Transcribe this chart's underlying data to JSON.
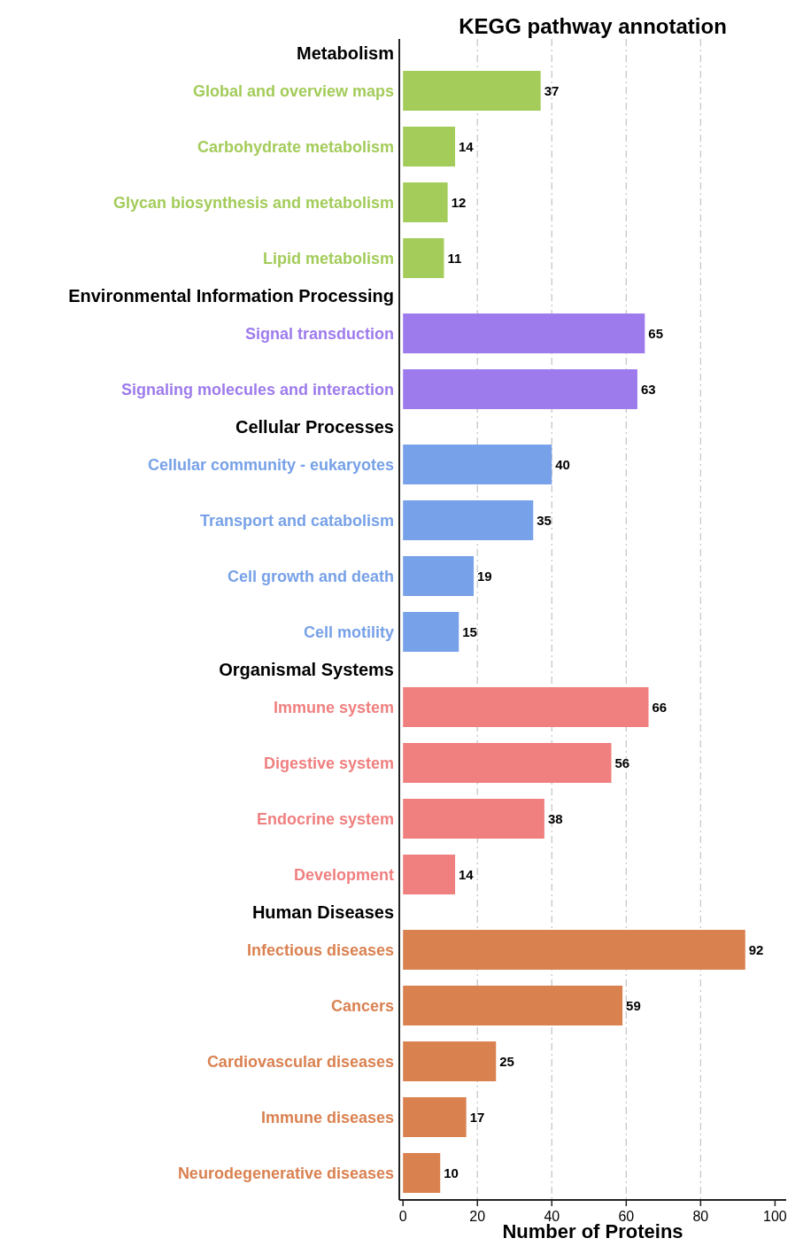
{
  "chart_data": {
    "type": "bar",
    "orientation": "horizontal",
    "title": "KEGG pathway annotation",
    "xlabel": "Number of Proteins",
    "categories": [
      "Metabolism",
      "Global and overview maps",
      "Carbohydrate metabolism",
      "Glycan biosynthesis and metabolism",
      "Lipid metabolism",
      "Environmental Information Processing",
      "Signal transduction",
      "Signaling molecules and interaction",
      "Cellular Processes",
      "Cellular community - eukaryotes",
      "Transport and catabolism",
      "Cell growth and death",
      "Cell motility",
      "Organismal Systems",
      "Immune system",
      "Digestive system",
      "Endocrine system",
      "Development",
      "Human Diseases",
      "Infectious diseases",
      "Cancers",
      "Cardiovascular diseases",
      "Immune diseases",
      "Neurodegenerative diseases"
    ],
    "values": [
      null,
      37,
      14,
      12,
      11,
      null,
      65,
      63,
      null,
      40,
      35,
      19,
      15,
      null,
      66,
      56,
      38,
      14,
      null,
      92,
      59,
      25,
      17,
      10
    ],
    "colors": [
      null,
      "#a3cc5a",
      "#a3cc5a",
      "#a3cc5a",
      "#a3cc5a",
      null,
      "#9d7bec",
      "#9d7bec",
      null,
      "#77a1e8",
      "#77a1e8",
      "#77a1e8",
      "#77a1e8",
      null,
      "#f07f7f",
      "#f07f7f",
      "#f07f7f",
      "#f07f7f",
      null,
      "#da8150",
      "#da8150",
      "#da8150",
      "#da8150",
      "#da8150"
    ],
    "xlim": [
      -1,
      103
    ],
    "xticks": [
      0,
      20,
      40,
      60,
      80,
      100
    ],
    "grid": "x",
    "data_labels": true
  }
}
